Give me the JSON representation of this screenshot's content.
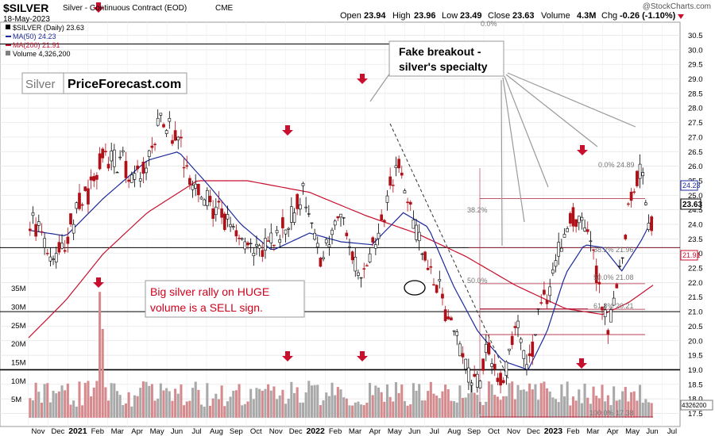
{
  "header": {
    "ticker": "$SILVER",
    "description": "Silver - Continuous Contract (EOD)",
    "exchange": "CME",
    "date": "18-May-2023",
    "ohlc": {
      "open_label": "Open",
      "open": "23.94",
      "high_label": "High",
      "high": "23.96",
      "low_label": "Low",
      "low": "23.49",
      "close_label": "Close",
      "close": "23.63",
      "volume_label": "Volume",
      "volume": "4.3M",
      "chg_label": "Chg",
      "chg": "-0.26 (-1.10%)"
    },
    "attribution": "@StockCharts.com"
  },
  "legend": [
    {
      "label": "$SILVER (Daily) 23.63",
      "color": "#000000"
    },
    {
      "label": "MA(50) 24.23",
      "color": "#1c2a9c"
    },
    {
      "label": "MA(200) 21.91",
      "color": "#c8102e"
    },
    {
      "label": "Volume 4,326,200",
      "color": "#7f7f7f"
    }
  ],
  "watermark": {
    "left": "Silver",
    "right": "PriceForecast.com"
  },
  "annotations": {
    "fake_breakout": [
      "Fake breakout -",
      "silver's specialty"
    ],
    "big_rally": [
      "Big silver rally on HUGE",
      "volume is a SELL sign."
    ]
  },
  "fib_labels": {
    "f0_top": "0.0%",
    "f382_left": "38.2%",
    "f50_left": "50.0%",
    "f100_left": "100.0%  17.38",
    "r0": "0.0%  24.89",
    "r382": "38.2%  21.96",
    "r50": "50.0%  21.08",
    "r618": "61.8%  20.21"
  },
  "price_tags": {
    "ma50": "24.23",
    "close": "23.63",
    "ma200": "21.91",
    "volume": "4326200"
  },
  "chart_data": {
    "type": "candlestick",
    "price_axis": {
      "min": 17.5,
      "max": 30.5,
      "ticks": [
        "17.5",
        "18.0",
        "18.5",
        "19.0",
        "19.5",
        "20.0",
        "20.5",
        "21.0",
        "21.5",
        "22.0",
        "22.5",
        "23.0",
        "23.5",
        "24.0",
        "24.5",
        "25.0",
        "25.5",
        "26.0",
        "26.5",
        "27.0",
        "27.5",
        "28.0",
        "28.5",
        "29.0",
        "29.5",
        "30.0",
        "30.5"
      ]
    },
    "volume_axis": {
      "ticks": [
        "5M",
        "10M",
        "15M",
        "20M",
        "25M",
        "30M",
        "35M"
      ],
      "values_millions": [
        5,
        10,
        15,
        20,
        25,
        30,
        35
      ]
    },
    "x_axis_labels": [
      "Nov",
      "Dec",
      "2021",
      "Feb",
      "Mar",
      "Apr",
      "May",
      "Jun",
      "Jul",
      "Aug",
      "Sep",
      "Oct",
      "Nov",
      "Dec",
      "2022",
      "Feb",
      "Mar",
      "Apr",
      "May",
      "Jun",
      "Jul",
      "Aug",
      "Sep",
      "Oct",
      "Nov",
      "Dec",
      "2023",
      "Feb",
      "Mar",
      "Apr",
      "May",
      "Jun",
      "Jul"
    ],
    "bold_x_labels": [
      "2021",
      "2022",
      "2023"
    ],
    "price_anchors": [
      {
        "t": 0,
        "p": 24.3
      },
      {
        "t": 0.04,
        "p": 22.8
      },
      {
        "t": 0.08,
        "p": 24.6
      },
      {
        "t": 0.12,
        "p": 26.4
      },
      {
        "t": 0.15,
        "p": 26.1
      },
      {
        "t": 0.18,
        "p": 25.4
      },
      {
        "t": 0.21,
        "p": 27.6
      },
      {
        "t": 0.24,
        "p": 26.8
      },
      {
        "t": 0.27,
        "p": 25.1
      },
      {
        "t": 0.32,
        "p": 24.0
      },
      {
        "t": 0.36,
        "p": 23.0
      },
      {
        "t": 0.4,
        "p": 23.6
      },
      {
        "t": 0.44,
        "p": 25.0
      },
      {
        "t": 0.47,
        "p": 22.8
      },
      {
        "t": 0.5,
        "p": 24.2
      },
      {
        "t": 0.53,
        "p": 22.3
      },
      {
        "t": 0.56,
        "p": 23.5
      },
      {
        "t": 0.59,
        "p": 26.3
      },
      {
        "t": 0.62,
        "p": 24.0
      },
      {
        "t": 0.64,
        "p": 22.6
      },
      {
        "t": 0.67,
        "p": 21.0
      },
      {
        "t": 0.7,
        "p": 19.2
      },
      {
        "t": 0.71,
        "p": 18.3
      },
      {
        "t": 0.74,
        "p": 19.6
      },
      {
        "t": 0.76,
        "p": 18.3
      },
      {
        "t": 0.78,
        "p": 20.7
      },
      {
        "t": 0.8,
        "p": 18.9
      },
      {
        "t": 0.82,
        "p": 21.3
      },
      {
        "t": 0.84,
        "p": 22.0
      },
      {
        "t": 0.86,
        "p": 23.7
      },
      {
        "t": 0.88,
        "p": 24.2
      },
      {
        "t": 0.9,
        "p": 23.8
      },
      {
        "t": 0.92,
        "p": 21.3
      },
      {
        "t": 0.93,
        "p": 20.2
      },
      {
        "t": 0.95,
        "p": 22.8
      },
      {
        "t": 0.97,
        "p": 25.5
      },
      {
        "t": 0.985,
        "p": 25.6
      },
      {
        "t": 1.0,
        "p": 23.63
      }
    ],
    "ma50_anchors": [
      {
        "t": 0,
        "p": 23.8
      },
      {
        "t": 0.06,
        "p": 23.6
      },
      {
        "t": 0.12,
        "p": 24.9
      },
      {
        "t": 0.19,
        "p": 26.2
      },
      {
        "t": 0.24,
        "p": 26.5
      },
      {
        "t": 0.29,
        "p": 25.3
      },
      {
        "t": 0.34,
        "p": 24.0
      },
      {
        "t": 0.39,
        "p": 23.1
      },
      {
        "t": 0.45,
        "p": 23.7
      },
      {
        "t": 0.5,
        "p": 23.4
      },
      {
        "t": 0.55,
        "p": 23.3
      },
      {
        "t": 0.6,
        "p": 24.4
      },
      {
        "t": 0.64,
        "p": 23.9
      },
      {
        "t": 0.68,
        "p": 21.9
      },
      {
        "t": 0.72,
        "p": 20.3
      },
      {
        "t": 0.76,
        "p": 19.3
      },
      {
        "t": 0.8,
        "p": 19.0
      },
      {
        "t": 0.83,
        "p": 20.3
      },
      {
        "t": 0.86,
        "p": 22.3
      },
      {
        "t": 0.89,
        "p": 23.3
      },
      {
        "t": 0.92,
        "p": 23.2
      },
      {
        "t": 0.95,
        "p": 22.4
      },
      {
        "t": 0.98,
        "p": 23.4
      },
      {
        "t": 1.0,
        "p": 24.23
      }
    ],
    "ma200_anchors": [
      {
        "t": 0,
        "p": 20.1
      },
      {
        "t": 0.06,
        "p": 21.4
      },
      {
        "t": 0.12,
        "p": 23.0
      },
      {
        "t": 0.19,
        "p": 24.4
      },
      {
        "t": 0.27,
        "p": 25.5
      },
      {
        "t": 0.35,
        "p": 25.5
      },
      {
        "t": 0.45,
        "p": 25.1
      },
      {
        "t": 0.54,
        "p": 24.3
      },
      {
        "t": 0.62,
        "p": 23.7
      },
      {
        "t": 0.7,
        "p": 22.9
      },
      {
        "t": 0.78,
        "p": 21.9
      },
      {
        "t": 0.86,
        "p": 21.1
      },
      {
        "t": 0.92,
        "p": 20.9
      },
      {
        "t": 0.96,
        "p": 21.3
      },
      {
        "t": 1.0,
        "p": 21.91
      }
    ],
    "fib_levels": [
      {
        "label": "38.2%",
        "value": 23.2
      },
      {
        "label": "50.0%",
        "value": 21.1
      },
      {
        "label": "100.0%",
        "value": 17.38
      },
      {
        "label": "0.0%",
        "value": 24.89
      },
      {
        "label": "38.2%",
        "value": 21.96
      },
      {
        "label": "50.0%",
        "value": 21.08
      },
      {
        "label": "61.8%",
        "value": 20.21
      }
    ],
    "horizontal_lines": [
      30.2,
      23.2,
      21.0,
      19.0
    ]
  }
}
